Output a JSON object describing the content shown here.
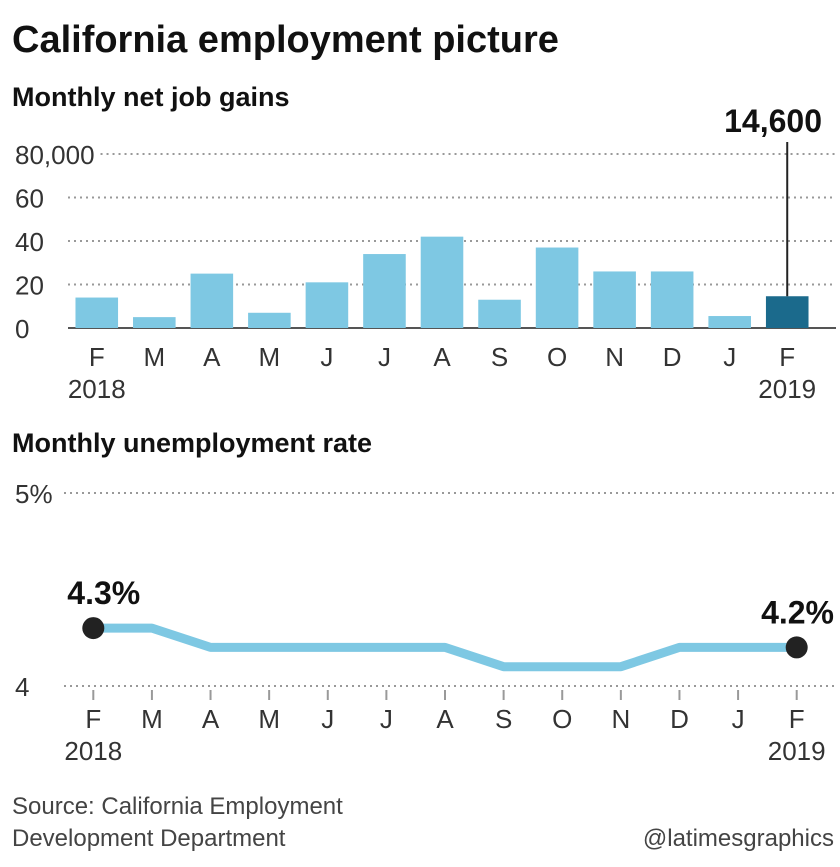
{
  "title": "California employment picture",
  "source": [
    "Source: California Employment",
    "Development Department"
  ],
  "credit": "@latimesgraphics",
  "chart_data": [
    {
      "type": "bar",
      "title": "Monthly net job gains",
      "categories": [
        "F",
        "M",
        "A",
        "M",
        "J",
        "J",
        "A",
        "S",
        "O",
        "N",
        "D",
        "J",
        "F"
      ],
      "x_sublabels": [
        "2018",
        null,
        null,
        null,
        null,
        null,
        null,
        null,
        null,
        null,
        null,
        null,
        "2019"
      ],
      "values": [
        14000,
        5000,
        25000,
        7000,
        21000,
        34000,
        42000,
        13000,
        37000,
        26000,
        26000,
        5500,
        14600
      ],
      "value_labels": [
        null,
        null,
        null,
        null,
        null,
        null,
        null,
        null,
        null,
        null,
        null,
        null,
        "14,600"
      ],
      "colors": [
        "#7ec8e3",
        "#7ec8e3",
        "#7ec8e3",
        "#7ec8e3",
        "#7ec8e3",
        "#7ec8e3",
        "#7ec8e3",
        "#7ec8e3",
        "#7ec8e3",
        "#7ec8e3",
        "#7ec8e3",
        "#7ec8e3",
        "#1b6a8c"
      ],
      "ylim": [
        0,
        80000
      ],
      "yticks": [
        0,
        {
          "value": 20000,
          "label": "20"
        },
        {
          "value": 40000,
          "label": "40"
        },
        {
          "value": 60000,
          "label": "60"
        },
        {
          "value": 80000,
          "label": "80,000"
        }
      ],
      "grid": true
    },
    {
      "type": "line",
      "title": "Monthly unemployment rate",
      "categories": [
        "F",
        "M",
        "A",
        "M",
        "J",
        "J",
        "A",
        "S",
        "O",
        "N",
        "D",
        "J",
        "F"
      ],
      "x_sublabels": [
        "2018",
        null,
        null,
        null,
        null,
        null,
        null,
        null,
        null,
        null,
        null,
        null,
        "2019"
      ],
      "values": [
        4.3,
        4.3,
        4.2,
        4.2,
        4.2,
        4.2,
        4.2,
        4.1,
        4.1,
        4.1,
        4.2,
        4.2,
        4.2
      ],
      "value_labels": [
        "4.3%",
        null,
        null,
        null,
        null,
        null,
        null,
        null,
        null,
        null,
        null,
        null,
        "4.2%"
      ],
      "color": "#7ec8e3",
      "ylim": [
        4,
        5
      ],
      "yticks": [
        4,
        {
          "value": 5,
          "label": "5%"
        }
      ],
      "grid": true
    }
  ]
}
